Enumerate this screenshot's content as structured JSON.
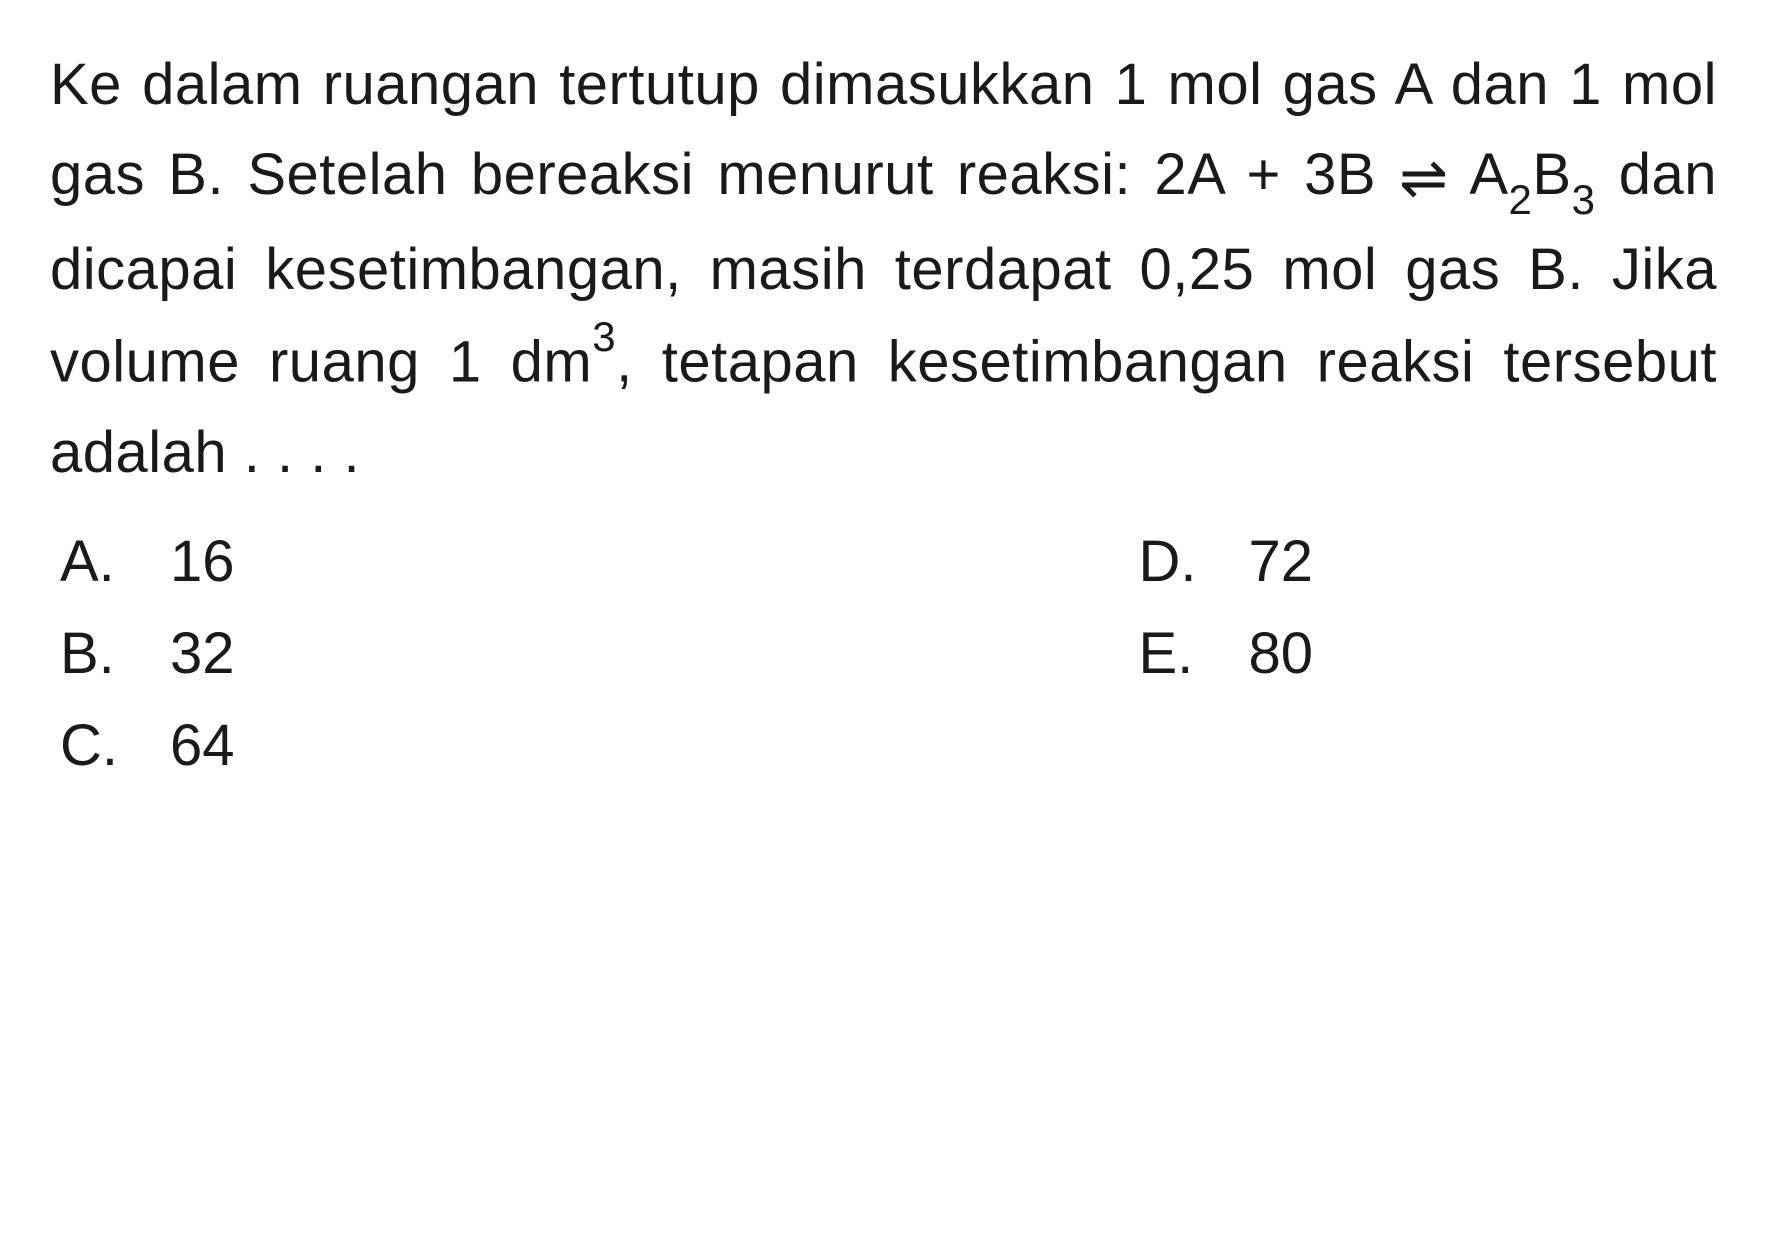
{
  "question": {
    "line1": "Ke dalam ruangan tertutup dimasukkan",
    "line2": "1 mol gas A dan 1 mol gas B. Setelah",
    "line3_part1": "bereaksi menurut reaksi: 2A + 3B ",
    "line3_part2": " A",
    "line3_sub1": "2",
    "line3_part3": "B",
    "line3_sub2": "3",
    "line4": "dan dicapai kesetimbangan, masih terdapat",
    "line5_part1": "0,25 mol gas B. Jika volume ruang 1 dm",
    "line5_sup": "3",
    "line5_part2": ",",
    "line6": "tetapan kesetimbangan reaksi tersebut",
    "line7": "adalah . . . ."
  },
  "options": {
    "a": {
      "letter": "A.",
      "value": "16"
    },
    "b": {
      "letter": "B.",
      "value": "32"
    },
    "c": {
      "letter": "C.",
      "value": "64"
    },
    "d": {
      "letter": "D.",
      "value": "72"
    },
    "e": {
      "letter": "E.",
      "value": "80"
    }
  },
  "styling": {
    "background_color": "#ffffff",
    "text_color": "#1a1a1a",
    "font_size_main": 58,
    "font_size_sub": 42,
    "line_height": 1.55
  }
}
